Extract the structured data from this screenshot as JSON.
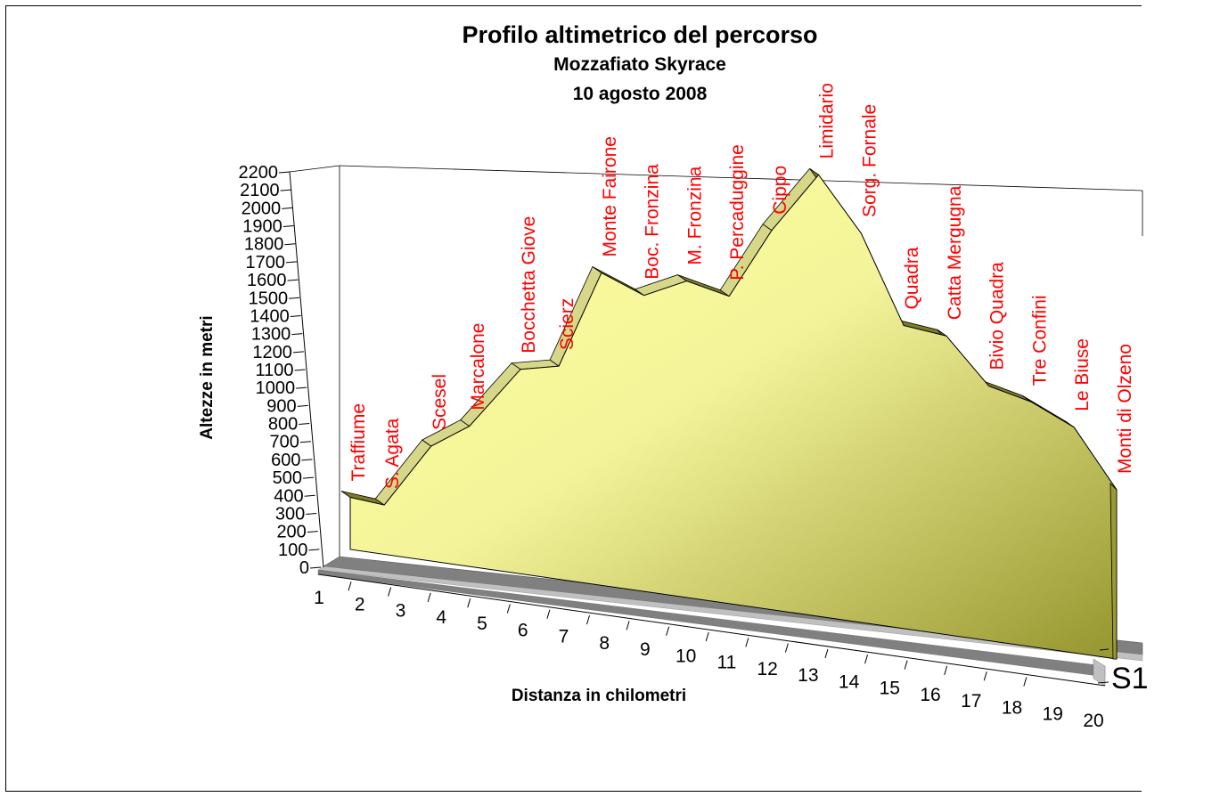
{
  "chart_data": {
    "type": "area",
    "title": "Profilo altimetrico del percorso",
    "subtitle": "Mozzafiato Skyrace",
    "date": "10 agosto 2008",
    "xlabel": "Distanza in chilometri",
    "ylabel": "Altezze in metri",
    "ylim": [
      0,
      2200
    ],
    "yticks": [
      "0",
      "100",
      "200",
      "300",
      "400",
      "500",
      "600",
      "700",
      "800",
      "900",
      "1000",
      "1100",
      "1200",
      "1300",
      "1400",
      "1500",
      "1600",
      "1700",
      "1800",
      "1900",
      "2000",
      "2100",
      "2200"
    ],
    "xticks": [
      "1",
      "2",
      "3",
      "4",
      "5",
      "6",
      "7",
      "8",
      "9",
      "10",
      "11",
      "12",
      "13",
      "14",
      "15",
      "16",
      "17",
      "18",
      "19",
      "20"
    ],
    "series_tick_label": "S1",
    "points": [
      {
        "x": 1,
        "y": 300,
        "label": "Traffiume"
      },
      {
        "x": 1.8,
        "y": 280,
        "label": "S. Agata"
      },
      {
        "x": 2.9,
        "y": 640,
        "label": "Scesel"
      },
      {
        "x": 3.8,
        "y": 770,
        "label": "Marcalone"
      },
      {
        "x": 5.0,
        "y": 1100,
        "label": "Bocchetta Giove"
      },
      {
        "x": 5.9,
        "y": 1130,
        "label": "Scierz"
      },
      {
        "x": 6.9,
        "y": 1630,
        "label": "Monte Fairone"
      },
      {
        "x": 7.9,
        "y": 1520,
        "label": "Boc. Fronzina"
      },
      {
        "x": 8.9,
        "y": 1600,
        "label": "M. Fronzina"
      },
      {
        "x": 9.9,
        "y": 1530,
        "label": "P. Percaduggine"
      },
      {
        "x": 10.9,
        "y": 1860,
        "label": "Cippo"
      },
      {
        "x": 12.0,
        "y": 2130,
        "label": "Limidario"
      },
      {
        "x": 13.0,
        "y": 1850,
        "label": "Sorg. Fornale"
      },
      {
        "x": 14.0,
        "y": 1420,
        "label": "Quadra"
      },
      {
        "x": 15.0,
        "y": 1380,
        "label": "Catta Mergugna"
      },
      {
        "x": 16.0,
        "y": 1160,
        "label": "Bivio Quadra"
      },
      {
        "x": 17.0,
        "y": 1100,
        "label": "Tre Confini"
      },
      {
        "x": 18.0,
        "y": 1000,
        "label": "Le Biuse"
      },
      {
        "x": 19.0,
        "y": 740,
        "label": "Monti di Olzeno"
      }
    ],
    "colors": {
      "area_light": "#fbfb9c",
      "area_dark": "#9a9a34",
      "label": "#ff0000",
      "axis": "#000000",
      "floor_dark": "#808080",
      "floor_light": "#c0c0c0"
    },
    "grid": false,
    "legend": "none"
  }
}
